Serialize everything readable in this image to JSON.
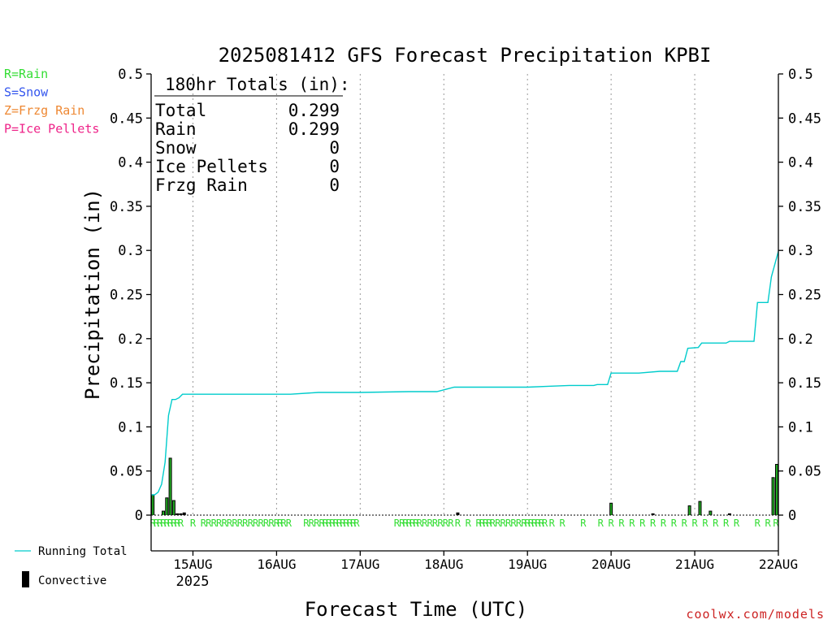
{
  "chart_data": {
    "type": "line",
    "title": "2025081412 GFS Forecast Precipitation KPBI",
    "xlabel": "Forecast Time (UTC)",
    "ylabel": "Precipitation (in)",
    "ylim": [
      0,
      0.5
    ],
    "y_ticks": [
      "0",
      "0.05",
      "0.1",
      "0.15",
      "0.2",
      "0.25",
      "0.3",
      "0.35",
      "0.4",
      "0.45",
      "0.5"
    ],
    "x_unit": "hours from 2025-08-14 12 UTC",
    "xlim": [
      0,
      180
    ],
    "x_ticks": [
      {
        "hour": 12,
        "label": "15AUG"
      },
      {
        "hour": 36,
        "label": "16AUG"
      },
      {
        "hour": 60,
        "label": "17AUG"
      },
      {
        "hour": 84,
        "label": "18AUG"
      },
      {
        "hour": 108,
        "label": "19AUG"
      },
      {
        "hour": 132,
        "label": "20AUG"
      },
      {
        "hour": 156,
        "label": "21AUG"
      },
      {
        "hour": 180,
        "label": "22AUG"
      }
    ],
    "x_year_label": "2025",
    "grid": "vertical dotted",
    "legend": {
      "precip_types": [
        {
          "label": "R=Rain",
          "color": "#33dd33"
        },
        {
          "label": "S=Snow",
          "color": "#3355ee"
        },
        {
          "label": "Z=Frzg Rain",
          "color": "#ee8833"
        },
        {
          "label": "P=Ice Pellets",
          "color": "#ee2288"
        }
      ],
      "running_total_label": "Running Total",
      "convective_label": "Convective"
    },
    "totals_box": {
      "heading": "180hr Totals (in):",
      "rows": [
        {
          "label": "Total",
          "value": "0.299"
        },
        {
          "label": "Rain",
          "value": "0.299"
        },
        {
          "label": "Snow",
          "value": "0"
        },
        {
          "label": "Ice Pellets",
          "value": "0"
        },
        {
          "label": "Frzg Rain",
          "value": "0"
        }
      ]
    },
    "series": [
      {
        "name": "Running Total",
        "color": "#00cccc",
        "x": [
          0,
          1,
          2,
          3,
          4,
          5,
          6,
          7,
          8,
          9,
          10,
          11,
          12,
          40,
          48,
          60,
          74,
          82,
          87,
          100,
          108,
          114,
          120,
          127,
          128,
          131,
          132,
          134,
          140,
          146,
          151,
          152,
          153,
          154,
          157,
          158,
          160,
          165,
          166,
          173,
          174,
          176,
          177,
          178,
          180
        ],
        "y": [
          0.023,
          0.023,
          0.026,
          0.035,
          0.06,
          0.113,
          0.131,
          0.131,
          0.133,
          0.137,
          0.137,
          0.137,
          0.137,
          0.137,
          0.139,
          0.139,
          0.14,
          0.14,
          0.145,
          0.145,
          0.145,
          0.146,
          0.147,
          0.147,
          0.148,
          0.148,
          0.161,
          0.161,
          0.161,
          0.163,
          0.163,
          0.174,
          0.174,
          0.189,
          0.19,
          0.195,
          0.195,
          0.195,
          0.197,
          0.197,
          0.241,
          0.241,
          0.241,
          0.27,
          0.299
        ]
      }
    ],
    "convective_bars": {
      "x": [
        0.5,
        3.5,
        4.5,
        5.5,
        6.5,
        7.5,
        8.5,
        9.5,
        88,
        132,
        144,
        154.5,
        157.5,
        160.5,
        166,
        178.5,
        180
      ],
      "y": [
        0.023,
        0.005,
        0.02,
        0.065,
        0.017,
        0.002,
        0.002,
        0.003,
        0.003,
        0.014,
        0.002,
        0.011,
        0.016,
        0.005,
        0.002,
        0.043,
        0.058
      ]
    },
    "precip_type_markers": {
      "symbol": "R",
      "x": [
        0.5,
        1.5,
        2.5,
        3.5,
        4.5,
        5.5,
        6.5,
        7.5,
        8.5,
        12,
        15,
        16.5,
        18,
        19.5,
        21,
        22.5,
        24,
        25.5,
        27,
        28.5,
        30,
        31.5,
        33,
        34.5,
        36,
        37,
        38,
        39.5,
        44.5,
        46,
        47.5,
        49,
        50,
        51,
        52,
        53,
        54,
        55,
        56,
        57,
        58,
        59,
        70.5,
        72,
        73,
        74,
        75,
        76,
        77,
        78.5,
        80,
        81.5,
        83,
        84.5,
        86,
        88,
        91,
        94,
        95,
        96,
        97,
        98,
        99.5,
        101,
        102.5,
        104,
        105.5,
        107,
        108,
        109,
        110,
        111,
        112,
        113,
        115,
        118,
        124,
        129,
        132,
        135,
        138,
        141,
        144,
        147,
        150,
        153,
        156,
        159,
        162,
        165,
        168,
        174,
        177,
        180
      ]
    }
  }
}
